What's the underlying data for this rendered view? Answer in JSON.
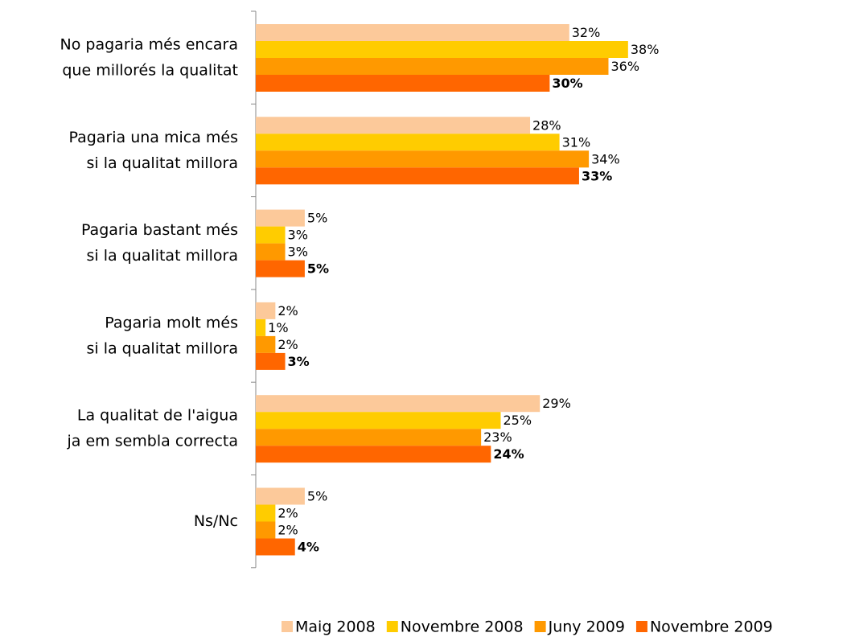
{
  "chart_data": {
    "type": "bar",
    "categories": [
      [
        "No pagaria més encara",
        "que millorés la qualitat"
      ],
      [
        "Pagaria una mica més",
        "si la qualitat millora"
      ],
      [
        "Pagaria bastant més",
        "si la qualitat millora"
      ],
      [
        "Pagaria molt més",
        "si la qualitat millora"
      ],
      [
        "La qualitat de l'aigua",
        "ja em sembla correcta"
      ],
      [
        "Ns/Nc"
      ]
    ],
    "series": [
      {
        "name": "Maig 2008",
        "color": "#fcc99a",
        "values": [
          32,
          28,
          5,
          2,
          29,
          5
        ],
        "value_labels": [
          "32%",
          "28%",
          "5%",
          "2%",
          "29%",
          "5%"
        ]
      },
      {
        "name": "Novembre 2008",
        "color": "#ffcc00",
        "values": [
          38,
          31,
          3,
          1,
          25,
          2
        ],
        "value_labels": [
          "38%",
          "31%",
          "3%",
          "1%",
          "25%",
          "2%"
        ]
      },
      {
        "name": "Juny 2009",
        "color": "#ff9900",
        "values": [
          36,
          34,
          3,
          2,
          23,
          2
        ],
        "value_labels": [
          "36%",
          "34%",
          "3%",
          "2%",
          "23%",
          "2%"
        ]
      },
      {
        "name": "Novembre 2009",
        "color": "#ff6600",
        "values": [
          30,
          33,
          5,
          3,
          24,
          4
        ],
        "value_labels": [
          "30%",
          "33%",
          "5%",
          "3%",
          "24%",
          "4%"
        ]
      }
    ],
    "legend": "bottom-right"
  }
}
